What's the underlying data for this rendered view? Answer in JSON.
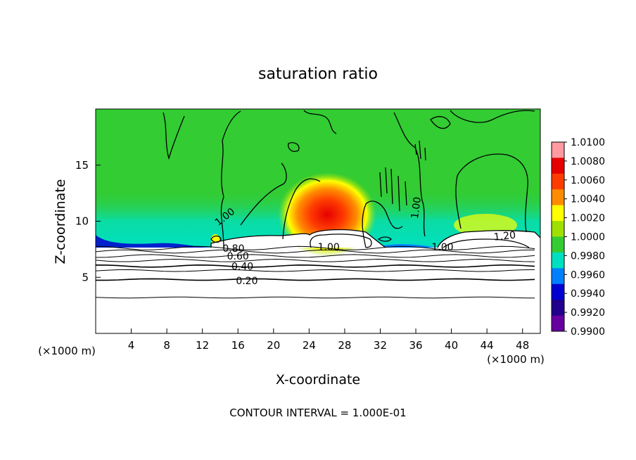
{
  "chart_data": {
    "type": "heatmap",
    "title": "saturation ratio",
    "xlabel": "X-coordinate",
    "ylabel": "Z-coordinate",
    "x_unit_left": "(×1000 m)",
    "x_unit_right": "(×1000 m)",
    "xlim": [
      0,
      50
    ],
    "ylim": [
      0,
      20
    ],
    "x_ticks": [
      4,
      8,
      12,
      16,
      20,
      24,
      28,
      32,
      36,
      40,
      44,
      48
    ],
    "y_ticks": [
      5,
      10,
      15
    ],
    "footer": "CONTOUR INTERVAL = 1.000E-01",
    "colorbar": {
      "labels": [
        "1.0100",
        "1.0080",
        "1.0060",
        "1.0040",
        "1.0020",
        "1.0000",
        "0.9980",
        "0.9960",
        "0.9940",
        "0.9920",
        "0.9900"
      ],
      "colors": [
        "#ff9aa0",
        "#e60000",
        "#ff3c00",
        "#ff8c00",
        "#ffff00",
        "#a0e000",
        "#33cc33",
        "#00e0c0",
        "#0080ff",
        "#0000d0",
        "#20008c",
        "#6600a0"
      ],
      "range": [
        0.99,
        1.01
      ]
    },
    "contour_labels": [
      {
        "text": "1.00",
        "x": 14.5,
        "z": 10.4,
        "rotate": -38
      },
      {
        "text": "1.00",
        "x": 26.2,
        "z": 7.7,
        "rotate": 0
      },
      {
        "text": "1.00",
        "x": 36.0,
        "z": 11.2,
        "rotate": -82
      },
      {
        "text": "1.00",
        "x": 39.0,
        "z": 7.7,
        "rotate": 0
      },
      {
        "text": "1.20",
        "x": 46.0,
        "z": 8.7,
        "rotate": -6
      },
      {
        "text": "0.80",
        "x": 15.5,
        "z": 7.6,
        "rotate": 0
      },
      {
        "text": "0.60",
        "x": 16.0,
        "z": 6.9,
        "rotate": 0
      },
      {
        "text": "0.40",
        "x": 16.5,
        "z": 6.0,
        "rotate": 0
      },
      {
        "text": "0.20",
        "x": 17.0,
        "z": 4.7,
        "rotate": 0
      }
    ],
    "horizontal_contours_z": [
      3.2,
      4.8,
      5.6,
      6.0,
      6.5,
      6.9,
      7.3,
      7.6
    ]
  }
}
